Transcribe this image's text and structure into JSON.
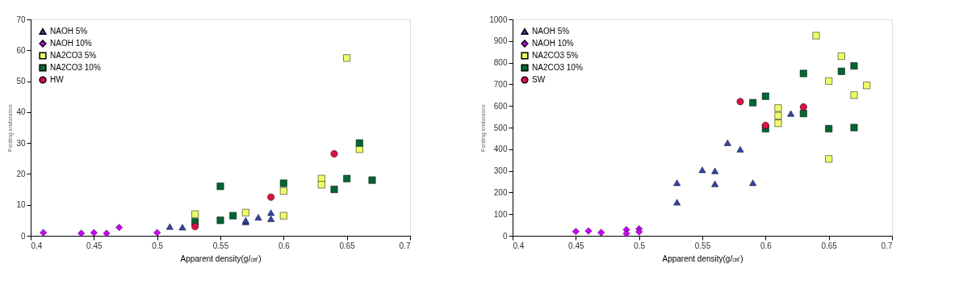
{
  "chart_data": [
    {
      "type": "scatter",
      "xlabel": "Apparent density(g/㎤)",
      "ylabel": "Fording endurance",
      "xlim": [
        0.4,
        0.7
      ],
      "ylim": [
        0,
        70
      ],
      "xticks": [
        0.4,
        0.45,
        0.5,
        0.55,
        0.6,
        0.65,
        0.7
      ],
      "yticks": [
        0,
        10,
        20,
        30,
        40,
        50,
        60,
        70
      ],
      "grid": false,
      "legend": "top left",
      "series": [
        {
          "name": "NAOH 5%",
          "color": "#3344aa",
          "marker": "triangle",
          "x": [
            0.51,
            0.52,
            0.57,
            0.57,
            0.58,
            0.59,
            0.59
          ],
          "values": [
            3,
            2.8,
            4.5,
            5,
            6,
            7.5,
            5.5
          ]
        },
        {
          "name": "NAOH 10%",
          "color": "#cc00ff",
          "marker": "diamond",
          "x": [
            0.41,
            0.44,
            0.45,
            0.46,
            0.47,
            0.5
          ],
          "values": [
            1,
            0.8,
            1,
            0.8,
            2.7,
            1
          ]
        },
        {
          "name": "NA2CO3 5%",
          "color": "#eeff66",
          "marker": "square",
          "x": [
            0.53,
            0.57,
            0.6,
            0.6,
            0.63,
            0.63,
            0.66,
            0.65
          ],
          "values": [
            7,
            7.5,
            14.5,
            6.5,
            18.5,
            16.5,
            28,
            57.5
          ]
        },
        {
          "name": "NA2CO3 10%",
          "color": "#006633",
          "marker": "square",
          "x": [
            0.53,
            0.55,
            0.55,
            0.56,
            0.6,
            0.64,
            0.65,
            0.66,
            0.67
          ],
          "values": [
            4.5,
            16,
            5,
            6.5,
            17,
            15,
            18.5,
            30,
            18
          ]
        },
        {
          "name": "HW",
          "color": "#dd1144",
          "marker": "circle",
          "x": [
            0.53,
            0.59,
            0.64
          ],
          "values": [
            3,
            12.5,
            26.5
          ]
        }
      ]
    },
    {
      "type": "scatter",
      "xlabel": "Apparent density(g/㎤)",
      "ylabel": "Fording endurance",
      "xlim": [
        0.4,
        0.7
      ],
      "ylim": [
        0,
        1000
      ],
      "xticks": [
        0.4,
        0.45,
        0.5,
        0.55,
        0.6,
        0.65,
        0.7
      ],
      "yticks": [
        0,
        100,
        200,
        300,
        400,
        500,
        600,
        700,
        800,
        900,
        1000
      ],
      "grid": false,
      "legend": "top left",
      "series": [
        {
          "name": "NAOH 5%",
          "color": "#3344aa",
          "marker": "triangle",
          "x": [
            0.53,
            0.53,
            0.55,
            0.56,
            0.56,
            0.57,
            0.58,
            0.59,
            0.62
          ],
          "values": [
            245,
            155,
            305,
            300,
            240,
            430,
            400,
            245,
            565
          ]
        },
        {
          "name": "NAOH 10%",
          "color": "#cc00ff",
          "marker": "diamond",
          "x": [
            0.45,
            0.46,
            0.47,
            0.49,
            0.49,
            0.5,
            0.5
          ],
          "values": [
            20,
            22,
            15,
            28,
            10,
            32,
            18
          ]
        },
        {
          "name": "NA2CO3 5%",
          "color": "#eeff66",
          "marker": "square",
          "x": [
            0.64,
            0.66,
            0.65,
            0.68,
            0.67,
            0.61,
            0.61,
            0.61,
            0.65
          ],
          "values": [
            925,
            830,
            715,
            695,
            650,
            590,
            555,
            520,
            355
          ]
        },
        {
          "name": "NA2CO3 10%",
          "color": "#006633",
          "marker": "square",
          "x": [
            0.59,
            0.6,
            0.63,
            0.63,
            0.6,
            0.66,
            0.67,
            0.65,
            0.67
          ],
          "values": [
            615,
            645,
            750,
            565,
            495,
            760,
            785,
            495,
            500
          ]
        },
        {
          "name": "SW",
          "color": "#dd1144",
          "marker": "circle",
          "x": [
            0.58,
            0.6,
            0.63
          ],
          "values": [
            620,
            510,
            595
          ]
        }
      ]
    }
  ]
}
